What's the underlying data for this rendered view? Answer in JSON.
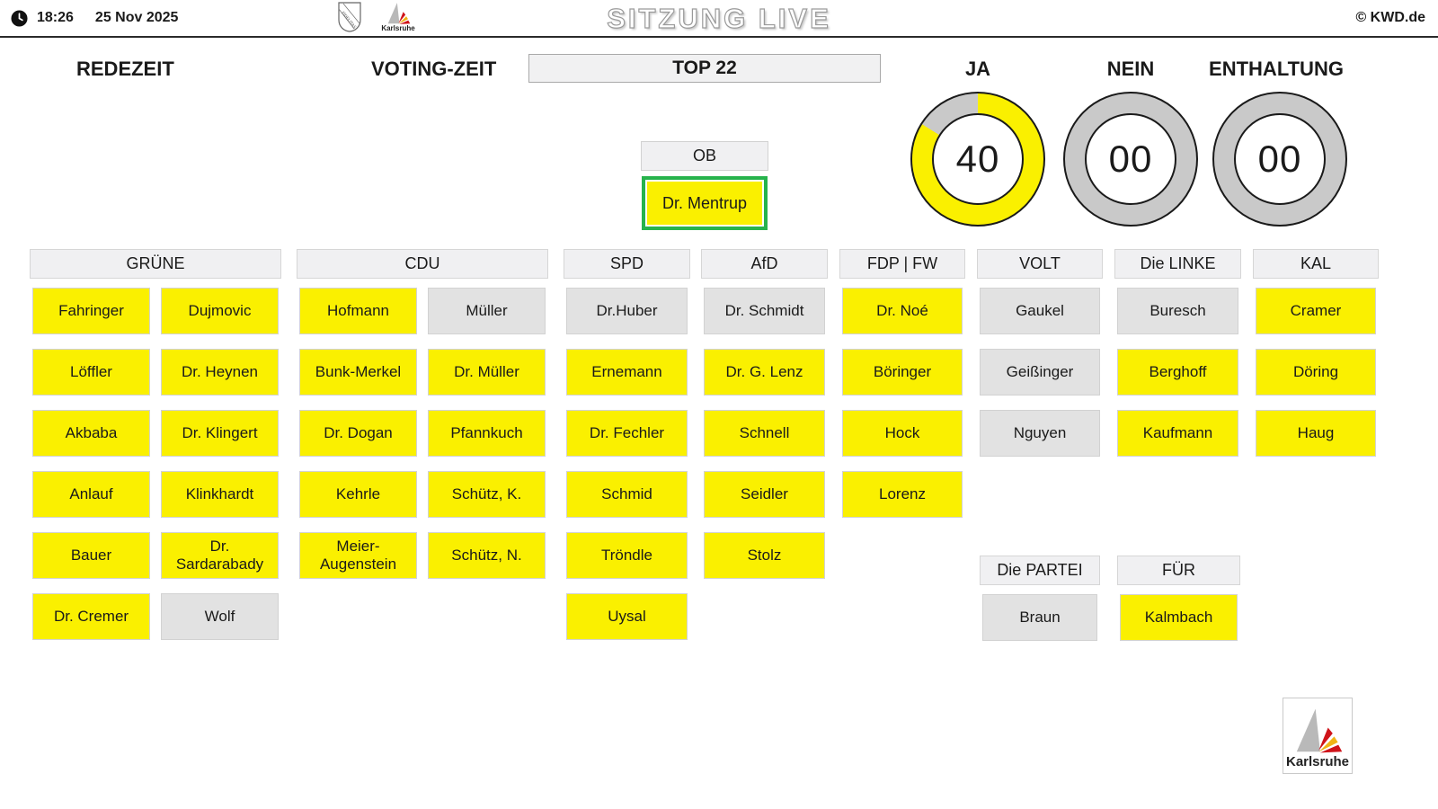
{
  "colors": {
    "ja_yellow": "#faf000",
    "none_gray": "#e2e2e2",
    "ring_gray": "#c9c9c9",
    "selected_green": "#27b34c"
  },
  "header": {
    "time": "18:26",
    "date": "25 Nov 2025",
    "title": "SITZUNG LIVE",
    "copyright": "© KWD.de",
    "logos": {
      "shield": "FIDELITAS",
      "city": "Karlsruhe"
    }
  },
  "toolbar": {
    "redezeit_label": "REDEZEIT",
    "voting_label": "VOTING-ZEIT",
    "top_label": "TOP 22"
  },
  "gauges": [
    {
      "label": "JA",
      "value": "40",
      "fill_deg": 302
    },
    {
      "label": "NEIN",
      "value": "00",
      "fill_deg": 0
    },
    {
      "label": "ENTHALTUNG",
      "value": "00",
      "fill_deg": 0
    }
  ],
  "ob": {
    "label": "OB",
    "name": "Dr. Mentrup",
    "vote": "ja"
  },
  "parties": [
    {
      "name": "GRÜNE",
      "layout": "double",
      "members": [
        {
          "name": "Fahringer",
          "vote": "ja"
        },
        {
          "name": "Dujmovic",
          "vote": "ja"
        },
        {
          "name": "Löffler",
          "vote": "ja"
        },
        {
          "name": "Dr. Heynen",
          "vote": "ja"
        },
        {
          "name": "Akbaba",
          "vote": "ja"
        },
        {
          "name": "Dr. Klingert",
          "vote": "ja"
        },
        {
          "name": "Anlauf",
          "vote": "ja"
        },
        {
          "name": "Klinkhardt",
          "vote": "ja"
        },
        {
          "name": "Bauer",
          "vote": "ja"
        },
        {
          "name": "Dr.\nSardarabady",
          "vote": "ja"
        },
        {
          "name": "Dr. Cremer",
          "vote": "ja"
        },
        {
          "name": "Wolf",
          "vote": "none"
        }
      ]
    },
    {
      "name": "CDU",
      "layout": "double",
      "members": [
        {
          "name": "Hofmann",
          "vote": "ja"
        },
        {
          "name": "Müller",
          "vote": "none"
        },
        {
          "name": "Bunk-Merkel",
          "vote": "ja"
        },
        {
          "name": "Dr. Müller",
          "vote": "ja"
        },
        {
          "name": "Dr. Dogan",
          "vote": "ja"
        },
        {
          "name": "Pfannkuch",
          "vote": "ja"
        },
        {
          "name": "Kehrle",
          "vote": "ja"
        },
        {
          "name": "Schütz, K.",
          "vote": "ja"
        },
        {
          "name": "Meier-\nAugenstein",
          "vote": "ja"
        },
        {
          "name": "Schütz, N.",
          "vote": "ja"
        }
      ]
    },
    {
      "name": "SPD",
      "layout": "single",
      "members": [
        {
          "name": "Dr.Huber",
          "vote": "none"
        },
        {
          "name": "Ernemann",
          "vote": "ja"
        },
        {
          "name": "Dr. Fechler",
          "vote": "ja"
        },
        {
          "name": "Schmid",
          "vote": "ja"
        },
        {
          "name": "Tröndle",
          "vote": "ja"
        },
        {
          "name": "Uysal",
          "vote": "ja"
        }
      ]
    },
    {
      "name": "AfD",
      "layout": "single",
      "members": [
        {
          "name": "Dr. Schmidt",
          "vote": "none"
        },
        {
          "name": "Dr. G. Lenz",
          "vote": "ja"
        },
        {
          "name": "Schnell",
          "vote": "ja"
        },
        {
          "name": "Seidler",
          "vote": "ja"
        },
        {
          "name": "Stolz",
          "vote": "ja"
        }
      ]
    },
    {
      "name": "FDP | FW",
      "layout": "single",
      "members": [
        {
          "name": "Dr. Noé",
          "vote": "ja"
        },
        {
          "name": "Böringer",
          "vote": "ja"
        },
        {
          "name": "Hock",
          "vote": "ja"
        },
        {
          "name": "Lorenz",
          "vote": "ja"
        }
      ]
    },
    {
      "name": "VOLT",
      "layout": "single",
      "members": [
        {
          "name": "Gaukel",
          "vote": "none"
        },
        {
          "name": "Geißinger",
          "vote": "none"
        },
        {
          "name": "Nguyen",
          "vote": "none"
        }
      ]
    },
    {
      "name": "Die LINKE",
      "layout": "single",
      "members": [
        {
          "name": "Buresch",
          "vote": "none"
        },
        {
          "name": "Berghoff",
          "vote": "ja"
        },
        {
          "name": "Kaufmann",
          "vote": "ja"
        }
      ]
    },
    {
      "name": "KAL",
      "layout": "single",
      "members": [
        {
          "name": "Cramer",
          "vote": "ja"
        },
        {
          "name": "Döring",
          "vote": "ja"
        },
        {
          "name": "Haug",
          "vote": "ja"
        }
      ]
    },
    {
      "name": "Die PARTEI",
      "layout": "single",
      "members": [
        {
          "name": "Braun",
          "vote": "none"
        }
      ]
    },
    {
      "name": "FÜR",
      "layout": "single",
      "members": [
        {
          "name": "Kalmbach",
          "vote": "ja"
        }
      ]
    }
  ],
  "footer_logo": {
    "label": "Karlsruhe"
  }
}
